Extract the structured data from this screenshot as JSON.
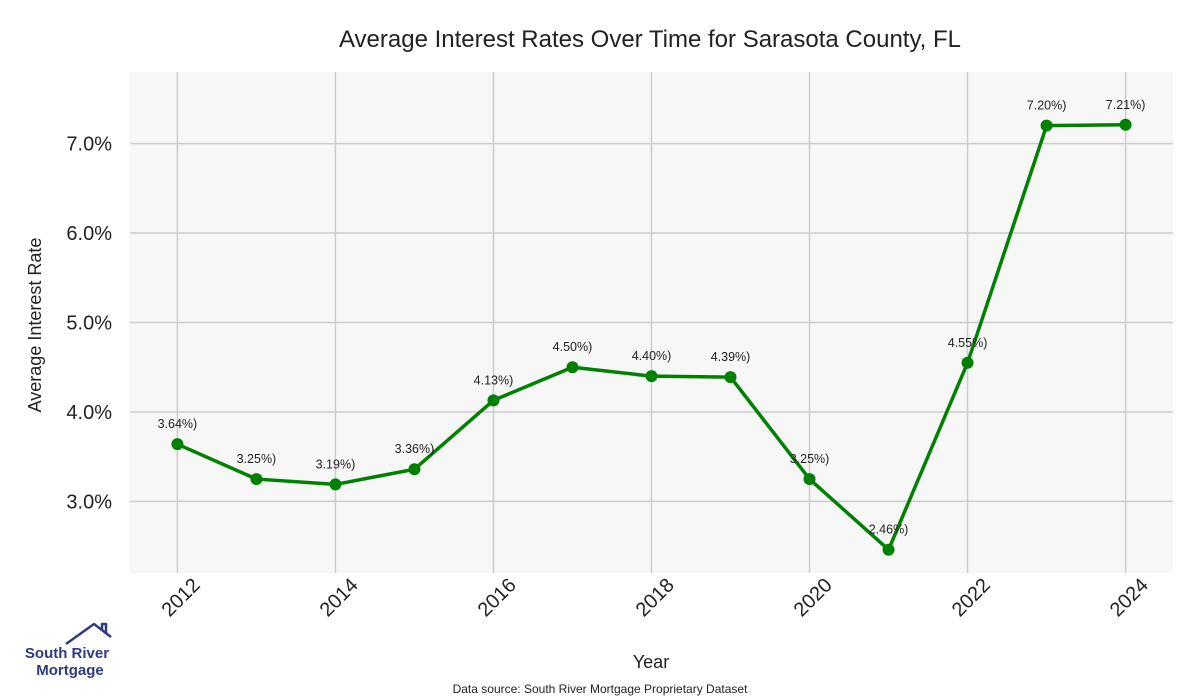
{
  "chart_data": {
    "type": "line",
    "title": "Average Interest Rates Over Time for Sarasota County, FL",
    "xlabel": "Year",
    "ylabel": "Average Interest Rate",
    "x": [
      2012,
      2013,
      2014,
      2015,
      2016,
      2017,
      2018,
      2019,
      2020,
      2021,
      2022,
      2023,
      2024
    ],
    "series": [
      {
        "values": [
          3.64,
          3.25,
          3.19,
          3.36,
          4.13,
          4.5,
          4.4,
          4.39,
          3.25,
          2.46,
          4.55,
          7.2,
          7.21
        ],
        "labels": [
          "3.64%)",
          "3.25%)",
          "3.19%)",
          "3.36%)",
          "4.13%)",
          "4.50%)",
          "4.40%)",
          "4.39%)",
          "3.25%)",
          "2.46%)",
          "4.55%)",
          "7.20%)",
          "7.21%)"
        ],
        "color": "#008000"
      }
    ],
    "xticks": [
      "2012",
      "2014",
      "2016",
      "2018",
      "2020",
      "2022",
      "2024"
    ],
    "yticks": [
      {
        "value": 3.0,
        "label": "3.0%"
      },
      {
        "value": 4.0,
        "label": "4.0%"
      },
      {
        "value": 5.0,
        "label": "5.0%"
      },
      {
        "value": 6.0,
        "label": "6.0%"
      },
      {
        "value": 7.0,
        "label": "7.0%"
      }
    ],
    "xlim": [
      2011.4,
      2024.6
    ],
    "ylim": [
      2.2,
      7.8
    ],
    "grid": true,
    "plot_background": "#f7f7f7",
    "grid_color": "#cccccc"
  },
  "source_note": "Data source: South River Mortgage Proprietary Dataset",
  "logo": {
    "line1": "South River",
    "line2": "Mortgage",
    "color": "#2d3b80"
  }
}
